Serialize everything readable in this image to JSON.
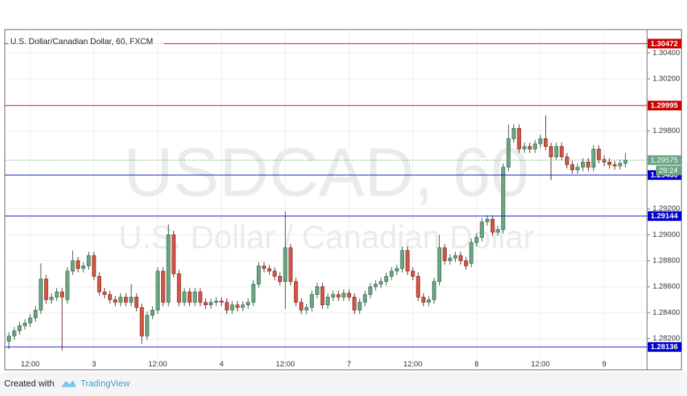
{
  "chart_data": {
    "type": "candlestick",
    "title": "U.S. Dollar/Canadian Dollar, 60, FXCM",
    "watermark": [
      "USDCAD, 60",
      "U.S. Dollar / Canadian Dollar"
    ],
    "categories": [
      null,
      null,
      null,
      null,
      "12:00",
      null,
      null,
      null,
      null,
      null,
      null,
      null,
      null,
      null,
      null,
      null,
      "3",
      null,
      null,
      null,
      null,
      null,
      null,
      null,
      null,
      null,
      null,
      null,
      "12:00",
      null,
      null,
      null,
      null,
      null,
      null,
      null,
      null,
      null,
      null,
      null,
      "4",
      null,
      null,
      null,
      null,
      null,
      null,
      null,
      null,
      null,
      null,
      null,
      "12:00",
      null,
      null,
      null,
      null,
      null,
      null,
      null,
      null,
      null,
      null,
      null,
      "7",
      null,
      null,
      null,
      null,
      null,
      null,
      null,
      null,
      null,
      null,
      null,
      "12:00",
      null,
      null,
      null,
      null,
      null,
      null,
      null,
      null,
      null,
      null,
      null,
      "8",
      null,
      null,
      null,
      null,
      null,
      null,
      null,
      null,
      null,
      null,
      null,
      "12:00",
      null,
      null,
      null,
      null,
      null,
      null,
      null,
      null,
      null,
      null,
      null,
      "9",
      null,
      null,
      null,
      null
    ],
    "open": [
      1.2818,
      1.2822,
      1.2826,
      1.283,
      1.2832,
      1.2836,
      1.2842,
      1.2866,
      1.285,
      1.2852,
      1.2856,
      1.285,
      1.2872,
      1.288,
      1.2874,
      1.2876,
      1.2884,
      1.2868,
      1.2856,
      1.2854,
      1.285,
      1.2848,
      1.2852,
      1.2848,
      1.2852,
      1.2844,
      1.2822,
      1.2838,
      1.2842,
      1.2872,
      1.2848,
      1.29,
      1.287,
      1.2848,
      1.2856,
      1.2848,
      1.2856,
      1.2848,
      1.2846,
      1.2848,
      1.2849,
      1.2848,
      1.2842,
      1.2846,
      1.2844,
      1.2846,
      1.2848,
      1.2862,
      1.2876,
      1.2874,
      1.2872,
      1.2868,
      1.2864,
      1.289,
      1.2864,
      1.2848,
      1.2842,
      1.2844,
      1.2854,
      1.286,
      1.2846,
      1.2852,
      1.2854,
      1.2852,
      1.2855,
      1.2852,
      1.2842,
      1.2848,
      1.2854,
      1.286,
      1.2862,
      1.2864,
      1.2868,
      1.2872,
      1.2874,
      1.2888,
      1.2872,
      1.2868,
      1.2852,
      1.2848,
      1.285,
      1.2864,
      1.289,
      1.288,
      1.2882,
      1.2884,
      1.288,
      1.2878,
      1.2894,
      1.2898,
      1.291,
      1.2912,
      1.2902,
      1.2904,
      1.2952,
      1.2974,
      1.2982,
      1.2966,
      1.2968,
      1.2966,
      1.297,
      1.2974,
      1.2968,
      1.296,
      1.2968,
      1.296,
      1.2954,
      1.295,
      1.2952,
      1.2956,
      1.2952,
      1.2966,
      1.2958,
      1.2956,
      1.2954,
      1.2953,
      1.2955
    ],
    "high": [
      1.2825,
      1.2829,
      1.2833,
      1.2835,
      1.2839,
      1.2845,
      1.2878,
      1.2869,
      1.2855,
      1.2859,
      1.2859,
      1.2875,
      1.2888,
      1.2883,
      1.2879,
      1.2887,
      1.2887,
      1.2871,
      1.2859,
      1.2857,
      1.2853,
      1.2855,
      1.2855,
      1.2862,
      1.2855,
      1.2847,
      1.2841,
      1.2845,
      1.2875,
      1.2875,
      1.2908,
      1.2903,
      1.2873,
      1.2859,
      1.2859,
      1.2859,
      1.2859,
      1.2851,
      1.2851,
      1.2852,
      1.2852,
      1.2851,
      1.2849,
      1.2849,
      1.2849,
      1.2851,
      1.2865,
      1.2879,
      1.2879,
      1.2877,
      1.2875,
      1.2871,
      1.2918,
      1.2893,
      1.2867,
      1.2851,
      1.2847,
      1.2857,
      1.2863,
      1.2863,
      1.2855,
      1.2857,
      1.2857,
      1.2858,
      1.2858,
      1.2855,
      1.2851,
      1.2857,
      1.2863,
      1.2865,
      1.2867,
      1.2871,
      1.2875,
      1.2877,
      1.2891,
      1.2891,
      1.2875,
      1.2871,
      1.2855,
      1.2853,
      1.2867,
      1.29,
      1.2893,
      1.2885,
      1.2887,
      1.2887,
      1.2883,
      1.2897,
      1.2901,
      1.2913,
      1.2915,
      1.2915,
      1.2907,
      1.2955,
      1.2985,
      1.2985,
      1.2985,
      1.2971,
      1.2971,
      1.2973,
      1.2977,
      1.2992,
      1.2971,
      1.2971,
      1.2971,
      1.2963,
      1.2957,
      1.2955,
      1.2959,
      1.2959,
      1.2969,
      1.2969,
      1.2961,
      1.2959,
      1.2957,
      1.2958,
      1.2963
    ],
    "low": [
      1.2812,
      1.2819,
      1.2823,
      1.2827,
      1.2829,
      1.2833,
      1.2839,
      1.2847,
      1.2847,
      1.2849,
      1.2811,
      1.2847,
      1.2869,
      1.2871,
      1.2871,
      1.2873,
      1.2865,
      1.2853,
      1.2851,
      1.2847,
      1.2845,
      1.2845,
      1.2845,
      1.2845,
      1.2841,
      1.2816,
      1.2819,
      1.2835,
      1.2839,
      1.2845,
      1.2845,
      1.2867,
      1.2845,
      1.2845,
      1.2845,
      1.2845,
      1.2845,
      1.2843,
      1.2843,
      1.2845,
      1.2845,
      1.2839,
      1.2839,
      1.2841,
      1.2841,
      1.2843,
      1.2845,
      1.2859,
      1.2871,
      1.2869,
      1.2865,
      1.2861,
      1.2843,
      1.2861,
      1.2845,
      1.2839,
      1.2839,
      1.2841,
      1.2851,
      1.2843,
      1.2843,
      1.2849,
      1.2849,
      1.2849,
      1.2849,
      1.2839,
      1.2839,
      1.2845,
      1.2851,
      1.2857,
      1.2859,
      1.2861,
      1.2865,
      1.2869,
      1.2871,
      1.2869,
      1.2865,
      1.2849,
      1.2845,
      1.2845,
      1.2847,
      1.2861,
      1.2877,
      1.2877,
      1.2879,
      1.2877,
      1.2873,
      1.2875,
      1.2891,
      1.2895,
      1.2907,
      1.2899,
      1.2899,
      1.2901,
      1.2949,
      1.2971,
      1.2963,
      1.2963,
      1.2963,
      1.2963,
      1.2967,
      1.2965,
      1.2942,
      1.2957,
      1.2957,
      1.2951,
      1.2947,
      1.2947,
      1.2949,
      1.2949,
      1.2949,
      1.2955,
      1.2953,
      1.2951,
      1.295,
      1.295,
      1.2952
    ],
    "close": [
      1.2822,
      1.2826,
      1.283,
      1.2832,
      1.2836,
      1.2842,
      1.2866,
      1.285,
      1.2852,
      1.2856,
      1.2852,
      1.2872,
      1.288,
      1.2874,
      1.2876,
      1.2884,
      1.2868,
      1.2856,
      1.2854,
      1.285,
      1.2848,
      1.2852,
      1.2848,
      1.2852,
      1.2844,
      1.2822,
      1.2838,
      1.2842,
      1.2872,
      1.2848,
      1.29,
      1.287,
      1.2848,
      1.2856,
      1.2848,
      1.2856,
      1.2848,
      1.2846,
      1.2848,
      1.2849,
      1.2848,
      1.2842,
      1.2846,
      1.2844,
      1.2846,
      1.2848,
      1.2862,
      1.2876,
      1.2874,
      1.2872,
      1.2868,
      1.2864,
      1.289,
      1.2864,
      1.2848,
      1.2842,
      1.2844,
      1.2854,
      1.286,
      1.2846,
      1.2852,
      1.2854,
      1.2852,
      1.2855,
      1.2852,
      1.2842,
      1.2848,
      1.2854,
      1.286,
      1.2862,
      1.2864,
      1.2868,
      1.2872,
      1.2874,
      1.2888,
      1.2872,
      1.2868,
      1.2852,
      1.2848,
      1.285,
      1.2864,
      1.289,
      1.288,
      1.2882,
      1.2884,
      1.288,
      1.2876,
      1.2894,
      1.2898,
      1.291,
      1.2912,
      1.2902,
      1.2904,
      1.2952,
      1.2974,
      1.2982,
      1.2966,
      1.2968,
      1.2966,
      1.297,
      1.2974,
      1.2968,
      1.296,
      1.2968,
      1.296,
      1.2954,
      1.295,
      1.2952,
      1.2956,
      1.2952,
      1.2966,
      1.2958,
      1.2956,
      1.2954,
      1.2953,
      1.2955,
      1.29575
    ],
    "up_color": "#6ba583",
    "down_color": "#d75442",
    "ylim": [
      1.2796,
      1.3058
    ],
    "yticks": [
      {
        "value": 1.304,
        "label": "1.30400"
      },
      {
        "value": 1.302,
        "label": "1.30200"
      },
      {
        "value": 1.298,
        "label": "1.29800"
      },
      {
        "value": 1.292,
        "label": "1.29200"
      },
      {
        "value": 1.29,
        "label": "1.29000"
      },
      {
        "value": 1.288,
        "label": "1.28800"
      },
      {
        "value": 1.286,
        "label": "1.28600"
      },
      {
        "value": 1.284,
        "label": "1.28400"
      },
      {
        "value": 1.282,
        "label": "1.28200"
      }
    ],
    "grid": true,
    "levels": [
      {
        "value": 1.30472,
        "color": "#cc0000"
      },
      {
        "value": 1.29995,
        "color": "#cc0000"
      },
      {
        "value": 1.2946,
        "label": "1.29460",
        "color": "#0000cc"
      },
      {
        "value": 1.29144,
        "color": "#0000cc"
      },
      {
        "value": 1.28136,
        "color": "#0000cc"
      }
    ],
    "last_price": 1.29575,
    "countdown": "29:24"
  },
  "footer": {
    "prefix": "Created with",
    "brand": "TradingView"
  }
}
